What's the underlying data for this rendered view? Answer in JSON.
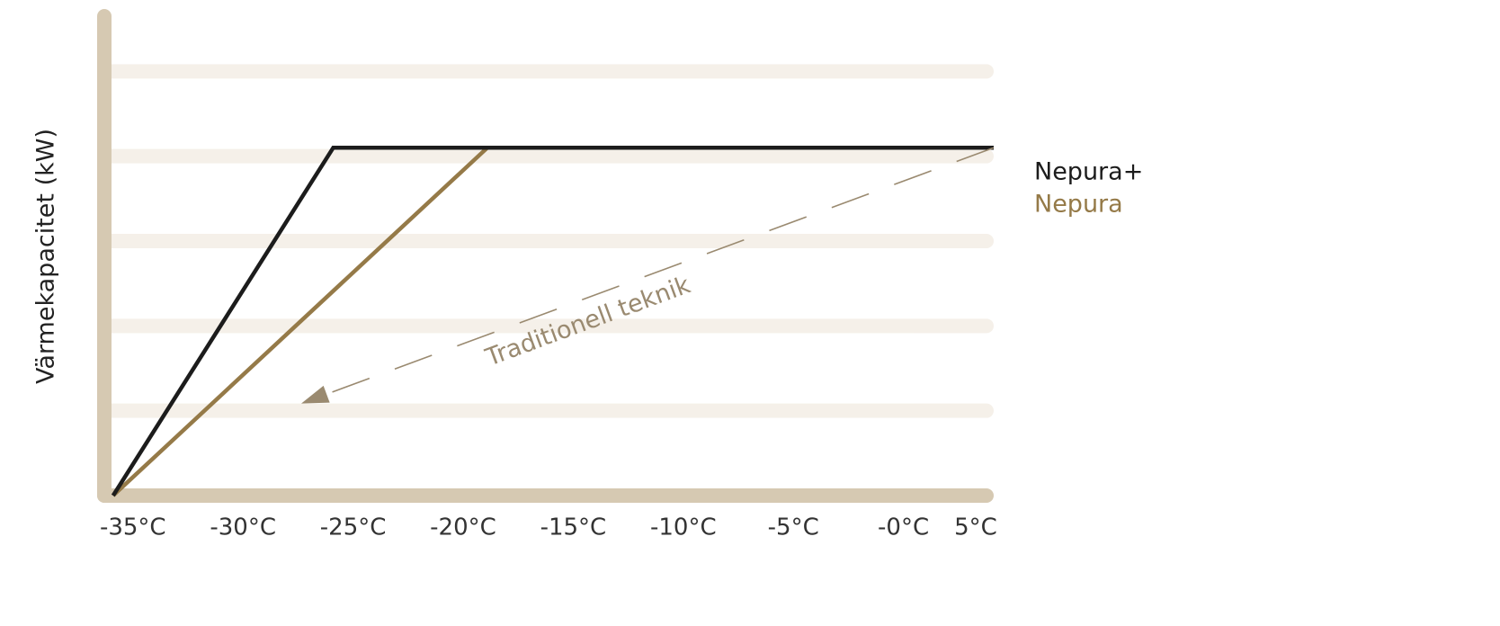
{
  "chart_data": {
    "type": "line",
    "y_label": "Värmekapacitet (kW)",
    "xlim": [
      -35.4,
      5
    ],
    "ylim": [
      0,
      5.65
    ],
    "xticks": [
      {
        "value": -35,
        "label": "-35°C"
      },
      {
        "value": -30,
        "label": "-30°C"
      },
      {
        "value": -25,
        "label": "-25°C"
      },
      {
        "value": -20,
        "label": "-20°C"
      },
      {
        "value": -15,
        "label": "-15°C"
      },
      {
        "value": -10,
        "label": "-10°C"
      },
      {
        "value": -5,
        "label": "-5°C"
      },
      {
        "value": 0,
        "label": "-0°C"
      },
      {
        "value": 5,
        "label": "5°C"
      }
    ],
    "yticks": [
      1,
      2,
      3,
      4,
      5
    ],
    "grid": true,
    "series": [
      {
        "name": "Nepura+",
        "color": "#1c1c1c",
        "x": [
          -35,
          -25,
          5
        ],
        "values": [
          0,
          4.1,
          4.1
        ]
      },
      {
        "name": "Nepura",
        "color": "#957a48",
        "x": [
          -35,
          -18,
          5
        ],
        "values": [
          0,
          4.1,
          4.1
        ]
      }
    ],
    "annotation": {
      "text": "Traditionell teknik",
      "color": "#9a8a70",
      "x": [
        5,
        -26.3
      ],
      "values": [
        4.1,
        1.1
      ]
    }
  }
}
